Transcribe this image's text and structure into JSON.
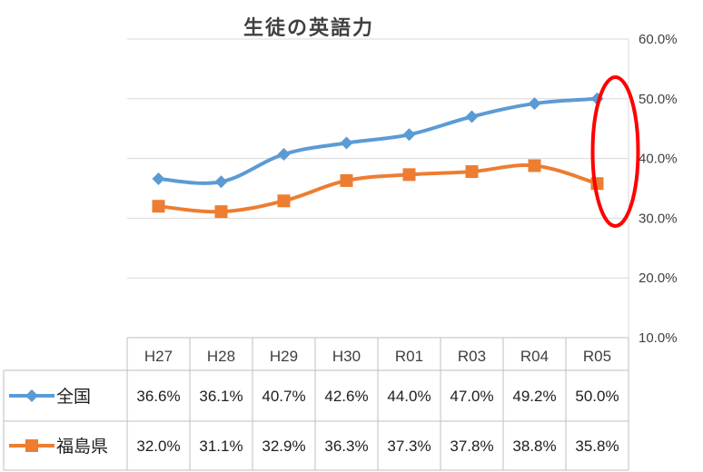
{
  "chart_data": {
    "type": "line",
    "title": "生徒の英語力",
    "categories": [
      "H27",
      "H28",
      "H29",
      "H30",
      "R01",
      "R03",
      "R04",
      "R05"
    ],
    "ylim": [
      0.1,
      0.6
    ],
    "yticks": [
      "10.0%",
      "20.0%",
      "30.0%",
      "40.0%",
      "50.0%",
      "60.0%"
    ],
    "yaxis_position": "right",
    "grid": true,
    "data_table": true,
    "series": [
      {
        "name": "全国",
        "color": "#5B9BD5",
        "marker": "diamond",
        "values": [
          0.366,
          0.361,
          0.407,
          0.426,
          0.44,
          0.47,
          0.492,
          0.5
        ],
        "labels": [
          "36.6%",
          "36.1%",
          "40.7%",
          "42.6%",
          "44.0%",
          "47.0%",
          "49.2%",
          "50.0%"
        ]
      },
      {
        "name": "福島県",
        "color": "#ED7D31",
        "marker": "square",
        "values": [
          0.32,
          0.311,
          0.329,
          0.363,
          0.373,
          0.378,
          0.388,
          0.358
        ],
        "labels": [
          "32.0%",
          "31.1%",
          "32.9%",
          "36.3%",
          "37.3%",
          "37.8%",
          "38.8%",
          "35.8%"
        ]
      }
    ],
    "annotation": {
      "shape": "ellipse",
      "color": "#FF0000",
      "target_category": "R05"
    }
  }
}
